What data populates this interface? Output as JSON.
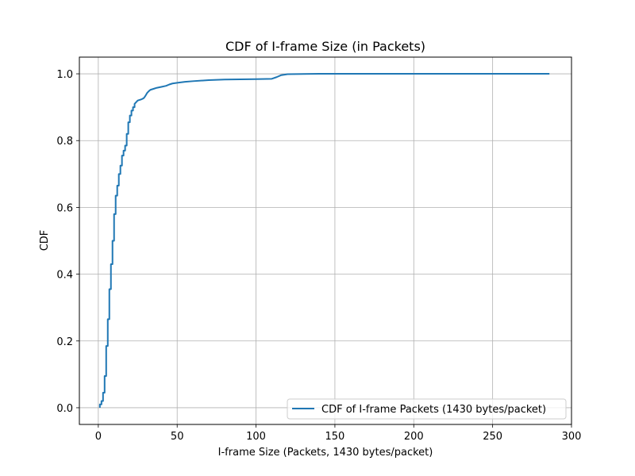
{
  "chart_data": {
    "type": "line",
    "title": "CDF of I-frame Size (in Packets)",
    "xlabel": "I-frame Size (Packets, 1430 bytes/packet)",
    "ylabel": "CDF",
    "xlim": [
      -12,
      300
    ],
    "ylim": [
      -0.05,
      1.05
    ],
    "xticks": [
      0,
      50,
      100,
      150,
      200,
      250,
      300
    ],
    "xtick_labels": [
      "0",
      "50",
      "100",
      "150",
      "200",
      "250",
      "300"
    ],
    "yticks": [
      0.0,
      0.2,
      0.4,
      0.6,
      0.8,
      1.0
    ],
    "ytick_labels": [
      "0.0",
      "0.2",
      "0.4",
      "0.6",
      "0.8",
      "1.0"
    ],
    "grid": true,
    "legend_position": "lower-right",
    "series_color": "#1f77b4",
    "series": [
      {
        "name": "CDF of I-frame Packets (1430 bytes/packet)",
        "x": [
          1,
          1,
          2,
          2,
          3,
          3,
          4,
          4,
          5,
          5,
          6,
          6,
          7,
          7,
          8,
          8,
          9,
          9,
          10,
          10,
          11,
          11,
          12,
          12,
          13,
          13,
          14,
          14,
          15,
          15,
          16,
          16,
          17,
          17,
          18,
          18,
          19,
          19,
          20,
          20,
          21,
          21,
          22,
          22,
          23,
          23,
          24,
          25,
          27,
          28,
          29,
          30,
          31,
          32,
          33,
          35,
          37,
          40,
          43,
          45,
          47,
          50,
          55,
          60,
          70,
          80,
          100,
          110,
          113,
          116,
          120,
          140,
          180,
          220,
          286
        ],
        "y": [
          0.0,
          0.01,
          0.01,
          0.02,
          0.02,
          0.045,
          0.045,
          0.095,
          0.095,
          0.185,
          0.185,
          0.265,
          0.265,
          0.355,
          0.355,
          0.43,
          0.43,
          0.5,
          0.5,
          0.58,
          0.58,
          0.635,
          0.635,
          0.665,
          0.665,
          0.7,
          0.7,
          0.725,
          0.725,
          0.755,
          0.755,
          0.77,
          0.77,
          0.785,
          0.785,
          0.82,
          0.82,
          0.855,
          0.855,
          0.875,
          0.875,
          0.89,
          0.89,
          0.9,
          0.9,
          0.91,
          0.915,
          0.92,
          0.923,
          0.925,
          0.928,
          0.935,
          0.943,
          0.948,
          0.952,
          0.955,
          0.958,
          0.961,
          0.964,
          0.968,
          0.971,
          0.973,
          0.976,
          0.978,
          0.981,
          0.983,
          0.984,
          0.985,
          0.99,
          0.996,
          0.999,
          1.0,
          1.0,
          1.0,
          1.0
        ]
      }
    ]
  }
}
